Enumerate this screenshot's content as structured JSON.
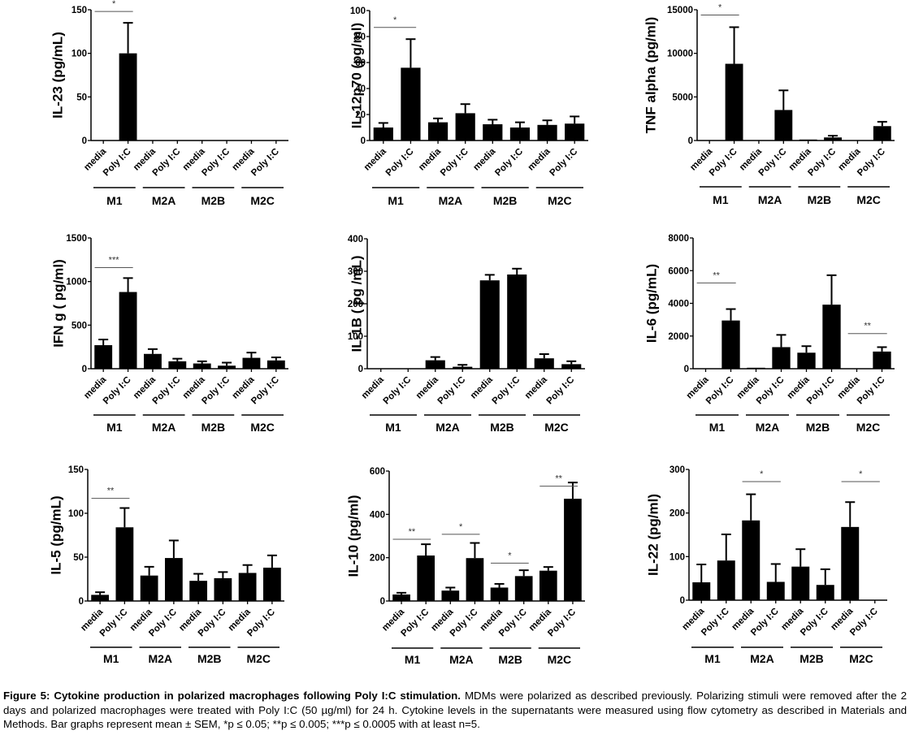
{
  "figure": {
    "caption_title": "Figure 5: Cytokine production in polarized macrophages following Poly I:C stimulation.",
    "caption_body": " MDMs were polarized as described previously. Polarizing stimuli were removed after the 2 days and polarized macrophages were treated with Poly I:C (50 µg/ml) for 24 h. Cytokine levels in the supernatants were measured using flow cytometry as described in Materials and Methods. Bar graphs represent mean ± SEM, *p ≤ 0.05; **p ≤ 0.005; ***p ≤ 0.0005 with at least n=5."
  },
  "chart_data": [
    {
      "type": "bar",
      "title": "",
      "ylabel": "IL-23 (pg/mL)",
      "ylim": [
        0,
        150
      ],
      "yticks": [
        0,
        50,
        100,
        150
      ],
      "categories": [
        "media",
        "Poly I:C",
        "media",
        "Poly I:C",
        "media",
        "Poly I:C",
        "media",
        "Poly I:C"
      ],
      "groups": [
        "M1",
        "M2A",
        "M2B",
        "M2C"
      ],
      "values": [
        0,
        100,
        0,
        0,
        0,
        0,
        0,
        0
      ],
      "errors": [
        0,
        35,
        0,
        0,
        0,
        0,
        0,
        0
      ],
      "significance": [
        {
          "from": 0,
          "to": 1,
          "label": "*",
          "y": 148
        }
      ]
    },
    {
      "type": "bar",
      "ylabel": "IL-12p70 (pg/ml)",
      "ylim": [
        0,
        100
      ],
      "yticks": [
        0,
        20,
        40,
        60,
        80,
        100
      ],
      "categories": [
        "media",
        "Poly I:C",
        "media",
        "Poly I:C",
        "media",
        "Poly I:C",
        "media",
        "Poly I:C"
      ],
      "groups": [
        "M1",
        "M2A",
        "M2B",
        "M2C"
      ],
      "values": [
        10,
        56,
        14,
        21,
        12.5,
        10,
        12,
        13
      ],
      "errors": [
        3.5,
        22,
        3,
        7,
        3.5,
        4,
        3.5,
        5.5
      ],
      "significance": [
        {
          "from": 0,
          "to": 1,
          "label": "*",
          "y": 87
        }
      ]
    },
    {
      "type": "bar",
      "ylabel": "TNF alpha (pg/ml)",
      "ylim": [
        0,
        15000
      ],
      "yticks": [
        0,
        5000,
        10000,
        15000
      ],
      "categories": [
        "media",
        "Poly I:C",
        "media",
        "Poly I:C",
        "media",
        "Poly I:C",
        "media",
        "Poly I:C"
      ],
      "groups": [
        "M1",
        "M2A",
        "M2B",
        "M2C"
      ],
      "values": [
        0,
        8800,
        0,
        3500,
        60,
        350,
        0,
        1650
      ],
      "errors": [
        0,
        4200,
        0,
        2250,
        0,
        200,
        0,
        500
      ],
      "significance": [
        {
          "from": 0,
          "to": 1,
          "label": "*",
          "y": 14400
        }
      ]
    },
    {
      "type": "bar",
      "ylabel": "IFN g ( pg/ml)",
      "ylim": [
        0,
        1500
      ],
      "yticks": [
        0,
        500,
        1000,
        1500
      ],
      "categories": [
        "media",
        "Poly I:C",
        "media",
        "Poly I:C",
        "media",
        "Poly I:C",
        "media",
        "Poly I:C"
      ],
      "groups": [
        "M1",
        "M2A",
        "M2B",
        "M2C"
      ],
      "values": [
        270,
        880,
        170,
        85,
        60,
        35,
        125,
        95
      ],
      "errors": [
        65,
        160,
        55,
        30,
        25,
        35,
        60,
        35
      ],
      "significance": [
        {
          "from": 0,
          "to": 1,
          "label": "***",
          "y": 1160
        }
      ]
    },
    {
      "type": "bar",
      "ylabel": "IL-1B ( pg /mL)",
      "ylim": [
        0,
        400
      ],
      "yticks": [
        0,
        100,
        200,
        300,
        400
      ],
      "categories": [
        "media",
        "Poly I:C",
        "media",
        "Poly I:C",
        "media",
        "Poly I:C",
        "media",
        "Poly I:C"
      ],
      "groups": [
        "M1",
        "M2A",
        "M2B",
        "M2C"
      ],
      "values": [
        0,
        0,
        26,
        6,
        272,
        290,
        32,
        14
      ],
      "errors": [
        0,
        0,
        10,
        6,
        17,
        18,
        13,
        9
      ],
      "significance": []
    },
    {
      "type": "bar",
      "ylabel": "IL-6 (pg/mL)",
      "ylim": [
        0,
        8000
      ],
      "yticks": [
        0,
        2000,
        4000,
        6000,
        8000
      ],
      "categories": [
        "media",
        "Poly I:C",
        "media",
        "Poly I:C",
        "media",
        "Poly I:C",
        "media",
        "Poly I:C"
      ],
      "groups": [
        "M1",
        "M2A",
        "M2B",
        "M2C"
      ],
      "values": [
        0,
        2950,
        20,
        1320,
        980,
        3920,
        0,
        1050
      ],
      "errors": [
        0,
        700,
        0,
        750,
        400,
        1800,
        0,
        270
      ],
      "significance": [
        {
          "from": 0,
          "to": 1,
          "label": "**",
          "y": 5250
        },
        {
          "from": 6,
          "to": 7,
          "label": "**",
          "y": 2150
        }
      ]
    },
    {
      "type": "bar",
      "ylabel": "IL-5 (pg/mL)",
      "ylim": [
        0,
        150
      ],
      "yticks": [
        0,
        50,
        100,
        150
      ],
      "categories": [
        "media",
        "Poly I:C",
        "media",
        "Poly I:C",
        "media",
        "Poly I:C",
        "media",
        "Poly I:C"
      ],
      "groups": [
        "M1",
        "M2A",
        "M2B",
        "M2C"
      ],
      "values": [
        7,
        84,
        29,
        49,
        23,
        26,
        32,
        38
      ],
      "errors": [
        3,
        22,
        10,
        20,
        8,
        7,
        9,
        14
      ],
      "significance": [
        {
          "from": 0,
          "to": 1,
          "label": "**",
          "y": 117
        }
      ]
    },
    {
      "type": "bar",
      "ylabel": "IL-10 (pg/ml)",
      "ylim": [
        0,
        600
      ],
      "yticks": [
        0,
        200,
        400,
        600
      ],
      "categories": [
        "media",
        "Poly I:C",
        "media",
        "Poly I:C",
        "media",
        "Poly I:C",
        "media",
        "Poly I:C"
      ],
      "groups": [
        "M1",
        "M2A",
        "M2B",
        "M2C"
      ],
      "values": [
        30,
        210,
        48,
        198,
        62,
        115,
        140,
        472
      ],
      "errors": [
        8,
        52,
        14,
        70,
        17,
        27,
        17,
        75
      ],
      "significance": [
        {
          "from": 0,
          "to": 1,
          "label": "**",
          "y": 285
        },
        {
          "from": 2,
          "to": 3,
          "label": "*",
          "y": 308
        },
        {
          "from": 4,
          "to": 5,
          "label": "*",
          "y": 175
        },
        {
          "from": 6,
          "to": 7,
          "label": "**",
          "y": 530
        }
      ]
    },
    {
      "type": "bar",
      "ylabel": "IL-22 (pg/ml)",
      "ylim": [
        0,
        300
      ],
      "yticks": [
        0,
        100,
        200,
        300
      ],
      "categories": [
        "media",
        "Poly I:C",
        "media",
        "Poly I:C",
        "media",
        "Poly I:C",
        "media",
        "Poly I:C"
      ],
      "groups": [
        "M1",
        "M2A",
        "M2B",
        "M2C"
      ],
      "values": [
        41,
        91,
        183,
        42,
        77,
        35,
        168,
        0
      ],
      "errors": [
        41,
        60,
        60,
        41,
        40,
        36,
        57,
        0
      ],
      "significance": [
        {
          "from": 2,
          "to": 3,
          "label": "*",
          "y": 272
        },
        {
          "from": 6,
          "to": 7,
          "label": "*",
          "y": 272
        }
      ]
    }
  ]
}
